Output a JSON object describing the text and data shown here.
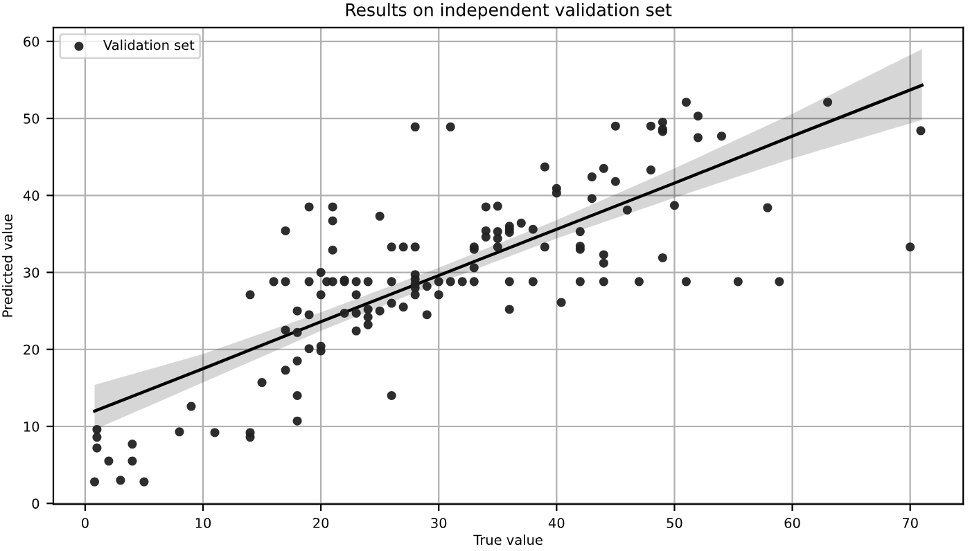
{
  "chart_data": {
    "type": "scatter",
    "title": "Results on independent validation set",
    "xlabel": "True value",
    "ylabel": "Predicted value",
    "xlim": [
      -2.7,
      74.5
    ],
    "ylim": [
      -0.1,
      61.8
    ],
    "xticks": [
      0,
      10,
      20,
      30,
      40,
      50,
      60,
      70
    ],
    "yticks": [
      0,
      10,
      20,
      30,
      40,
      50,
      60
    ],
    "grid": true,
    "legend": "top left",
    "series": [
      {
        "name": "Validation set",
        "marker": "circle",
        "color": "#222222",
        "x": [
          0.8,
          1,
          1,
          1,
          2,
          3,
          4,
          4,
          5,
          8,
          9,
          11,
          14,
          14,
          15,
          17,
          18,
          18,
          18,
          19,
          20,
          20,
          19,
          21,
          21,
          17,
          21,
          25,
          26,
          27,
          28,
          20,
          16,
          17,
          19,
          20.5,
          21,
          22,
          22,
          23,
          24,
          26,
          28,
          28,
          28,
          28,
          29,
          30,
          31,
          32,
          33,
          33,
          33,
          33,
          34,
          34,
          34,
          14,
          20,
          23,
          28,
          30,
          18,
          19,
          22,
          23,
          24,
          24,
          24,
          25,
          26,
          27,
          29,
          23,
          17,
          18,
          26,
          51,
          52,
          49,
          49,
          49,
          48,
          45,
          52,
          54,
          39,
          44,
          43,
          45,
          48,
          40,
          40,
          43,
          46,
          50,
          35,
          35,
          35,
          35,
          36,
          36,
          36,
          37,
          38,
          39,
          42,
          42,
          42,
          44,
          44,
          49,
          36,
          38,
          42,
          44,
          47,
          51,
          55.4,
          36,
          40.4,
          63,
          70.9,
          57.9,
          70,
          58.9,
          28,
          31
        ],
        "values": [
          2.8,
          9.6,
          8.6,
          7.2,
          5.5,
          3.0,
          7.7,
          5.5,
          2.8,
          9.3,
          12.6,
          9.2,
          9.2,
          8.6,
          15.7,
          17.3,
          18.5,
          14.0,
          10.7,
          20.1,
          20.4,
          19.8,
          38.5,
          38.5,
          36.7,
          35.4,
          32.9,
          37.3,
          33.3,
          33.3,
          33.3,
          30.0,
          28.8,
          28.8,
          28.8,
          28.8,
          28.8,
          29.0,
          28.8,
          28.8,
          28.8,
          28.8,
          29.7,
          29.1,
          28.5,
          28.0,
          28.2,
          28.8,
          28.8,
          28.8,
          28.8,
          30.6,
          33.3,
          33.0,
          38.5,
          35.4,
          34.6,
          27.1,
          27.1,
          27.1,
          27.1,
          27.1,
          25.0,
          24.5,
          24.7,
          24.7,
          25.2,
          24.2,
          23.2,
          25.0,
          26.0,
          25.5,
          24.5,
          22.4,
          22.5,
          22.2,
          14.0,
          52.1,
          50.3,
          49.5,
          48.6,
          48.3,
          49.0,
          49.0,
          47.5,
          47.7,
          43.7,
          43.5,
          42.4,
          41.8,
          43.3,
          40.9,
          40.3,
          39.6,
          38.1,
          38.7,
          38.6,
          35.3,
          34.4,
          33.3,
          36.0,
          35.6,
          35.2,
          36.4,
          35.6,
          33.3,
          35.3,
          33.4,
          33.0,
          32.3,
          31.2,
          31.9,
          28.8,
          28.8,
          28.8,
          28.8,
          28.8,
          28.8,
          28.8,
          25.2,
          26.1,
          52.1,
          48.4,
          38.4,
          33.3,
          28.8,
          48.9,
          48.9
        ]
      },
      {
        "type": "line",
        "color": "#000000",
        "x": [
          0.8,
          10,
          20,
          30,
          40,
          50,
          60,
          71
        ],
        "values": [
          12.0,
          17.5,
          23.6,
          29.6,
          35.6,
          41.6,
          47.7,
          54.3
        ],
        "lower": [
          9.6,
          15.7,
          22.4,
          28.6,
          34.4,
          39.7,
          44.8,
          49.8
        ],
        "upper": [
          15.4,
          19.4,
          24.8,
          30.6,
          36.8,
          43.5,
          50.6,
          59.0
        ]
      }
    ]
  }
}
